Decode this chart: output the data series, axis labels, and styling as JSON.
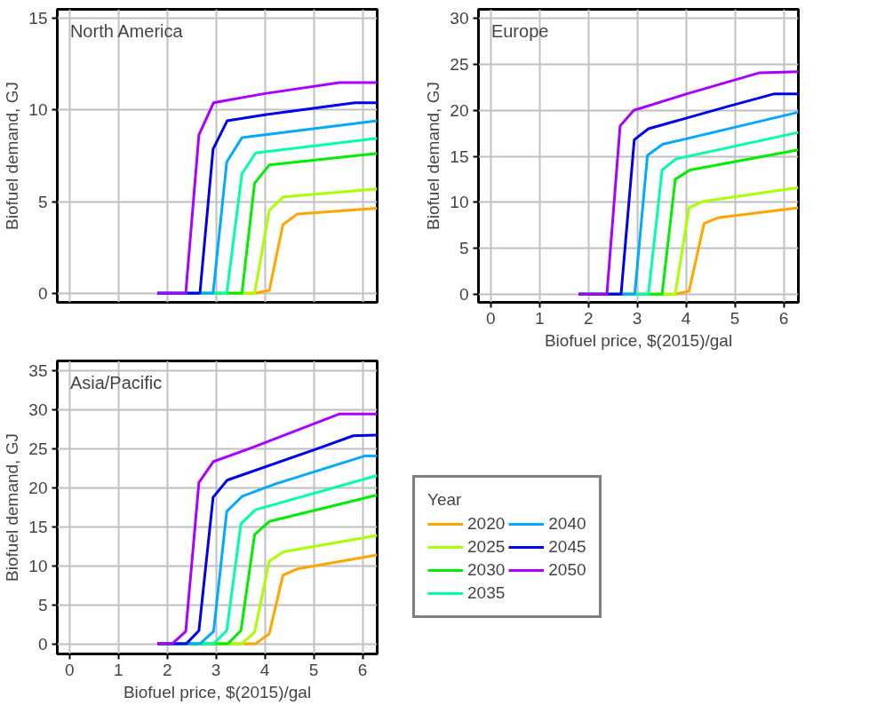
{
  "chart_data": [
    {
      "type": "line",
      "title": "North America",
      "ylabel": "Biofuel demand, GJ",
      "xlim": [
        -0.25,
        6.3
      ],
      "ylim": [
        -0.5,
        15.5
      ],
      "xticks": [
        0,
        1,
        2,
        3,
        4,
        5,
        6
      ],
      "yticks": [
        0,
        5,
        10,
        15
      ],
      "grid": true,
      "tick_labels": "y",
      "series": [
        {
          "color": "#ffa500",
          "x": [
            1.8,
            3.8,
            4.09,
            4.37,
            4.67,
            6.3
          ],
          "values": [
            0,
            0,
            0.15,
            3.74,
            4.33,
            4.64
          ]
        },
        {
          "color": "#aaff00",
          "x": [
            1.8,
            3.79,
            4.09,
            4.38,
            6.3
          ],
          "values": [
            0,
            0,
            4.52,
            5.26,
            5.69
          ]
        },
        {
          "color": "#00ee00",
          "x": [
            1.8,
            3.53,
            3.79,
            4.09,
            6.3
          ],
          "values": [
            0,
            0,
            6.0,
            7.0,
            7.63
          ]
        },
        {
          "color": "#00ffaa",
          "x": [
            1.8,
            3.22,
            3.53,
            3.81,
            6.3
          ],
          "values": [
            0,
            0,
            6.51,
            7.66,
            8.46
          ]
        },
        {
          "color": "#00aaff",
          "x": [
            1.8,
            2.94,
            3.22,
            3.53,
            6.3
          ],
          "values": [
            0,
            0,
            7.17,
            8.49,
            9.42
          ]
        },
        {
          "color": "#0000ee",
          "x": [
            1.8,
            2.67,
            2.94,
            3.23,
            4.0,
            5.84,
            6.3
          ],
          "values": [
            0,
            0,
            7.87,
            9.42,
            9.74,
            10.4,
            10.4
          ]
        },
        {
          "color": "#aa00ff",
          "x": [
            1.8,
            2.38,
            2.65,
            2.95,
            4.0,
            5.53,
            6.3
          ],
          "values": [
            0,
            0,
            8.65,
            10.4,
            10.9,
            11.5,
            11.5
          ]
        }
      ]
    },
    {
      "type": "line",
      "title": "Europe",
      "xlabel": "Biofuel price, $(2015)/gal",
      "ylabel": "Biofuel demand, GJ",
      "xlim": [
        -0.25,
        6.3
      ],
      "ylim": [
        -0.9,
        31
      ],
      "xticks": [
        0,
        1,
        2,
        3,
        4,
        5,
        6
      ],
      "yticks": [
        0,
        5,
        10,
        15,
        20,
        25,
        30
      ],
      "grid": true,
      "series": [
        {
          "color": "#ffa500",
          "x": [
            1.8,
            3.78,
            4.06,
            4.37,
            4.65,
            6.3
          ],
          "values": [
            0,
            0,
            0.3,
            7.7,
            8.3,
            9.4
          ]
        },
        {
          "color": "#aaff00",
          "x": [
            1.8,
            3.78,
            4.06,
            4.36,
            6.3
          ],
          "values": [
            0,
            0,
            9.4,
            10.1,
            11.6
          ]
        },
        {
          "color": "#00ee00",
          "x": [
            1.8,
            3.51,
            3.78,
            4.08,
            6.3
          ],
          "values": [
            0,
            0,
            12.5,
            13.5,
            15.7
          ]
        },
        {
          "color": "#00ffaa",
          "x": [
            1.8,
            3.23,
            3.51,
            3.79,
            6.3
          ],
          "values": [
            0,
            0,
            13.5,
            14.7,
            17.6
          ]
        },
        {
          "color": "#00aaff",
          "x": [
            1.8,
            2.95,
            3.21,
            3.52,
            6.3
          ],
          "values": [
            0,
            0,
            15.1,
            16.3,
            19.8
          ]
        },
        {
          "color": "#0000ee",
          "x": [
            1.8,
            2.67,
            2.94,
            3.23,
            4.84,
            5.81,
            6.3
          ],
          "values": [
            0,
            0,
            16.8,
            18.0,
            20.4,
            21.8,
            21.8
          ]
        },
        {
          "color": "#aa00ff",
          "x": [
            1.8,
            2.38,
            2.65,
            2.93,
            4.02,
            5.51,
            6.3
          ],
          "values": [
            0,
            0,
            18.3,
            20.0,
            21.8,
            24.1,
            24.2
          ]
        }
      ]
    },
    {
      "type": "line",
      "title": "Asia/Pacific",
      "xlabel": "Biofuel price, $(2015)/gal",
      "ylabel": "Biofuel demand, GJ",
      "legend_title": "Year",
      "legend": "right",
      "xlim": [
        -0.25,
        6.3
      ],
      "ylim": [
        -1.3,
        36.3
      ],
      "xticks": [
        0,
        1,
        2,
        3,
        4,
        5,
        6
      ],
      "yticks": [
        0,
        5,
        10,
        15,
        20,
        25,
        30,
        35
      ],
      "grid": true,
      "series": [
        {
          "name": "2020",
          "color": "#ffa500",
          "x": [
            1.8,
            3.81,
            4.09,
            4.37,
            4.66,
            6.3
          ],
          "values": [
            0,
            0,
            1.3,
            8.8,
            9.6,
            11.4
          ]
        },
        {
          "name": "2025",
          "color": "#aaff00",
          "x": [
            1.8,
            3.53,
            3.79,
            4.09,
            4.38,
            6.3
          ],
          "values": [
            0,
            0,
            1.5,
            10.6,
            11.8,
            13.9
          ]
        },
        {
          "name": "2030",
          "color": "#00ee00",
          "x": [
            1.8,
            3.24,
            3.51,
            3.79,
            4.09,
            6.3
          ],
          "values": [
            0,
            0,
            1.7,
            14.0,
            15.7,
            19.1
          ]
        },
        {
          "name": "2035",
          "color": "#00ffaa",
          "x": [
            1.8,
            2.95,
            3.22,
            3.51,
            3.81,
            6.3
          ],
          "values": [
            0,
            0,
            1.7,
            15.4,
            17.2,
            21.6
          ]
        },
        {
          "name": "2040",
          "color": "#00aaff",
          "x": [
            1.8,
            2.67,
            2.95,
            3.22,
            3.53,
            4.21,
            6.04,
            6.3
          ],
          "values": [
            0,
            0,
            1.6,
            17.0,
            18.9,
            20.5,
            24.1,
            24.1
          ]
        },
        {
          "name": "2045",
          "color": "#0000ee",
          "x": [
            1.8,
            2.39,
            2.65,
            2.94,
            3.23,
            5.01,
            5.81,
            6.3
          ],
          "values": [
            0,
            0,
            1.7,
            18.8,
            21.0,
            24.9,
            26.7,
            26.8
          ]
        },
        {
          "name": "2050",
          "color": "#aa00ff",
          "x": [
            1.8,
            2.1,
            2.38,
            2.65,
            2.95,
            3.75,
            5.53,
            6.3
          ],
          "values": [
            0,
            0,
            1.6,
            20.7,
            23.4,
            25.2,
            29.5,
            29.5
          ]
        }
      ]
    }
  ]
}
